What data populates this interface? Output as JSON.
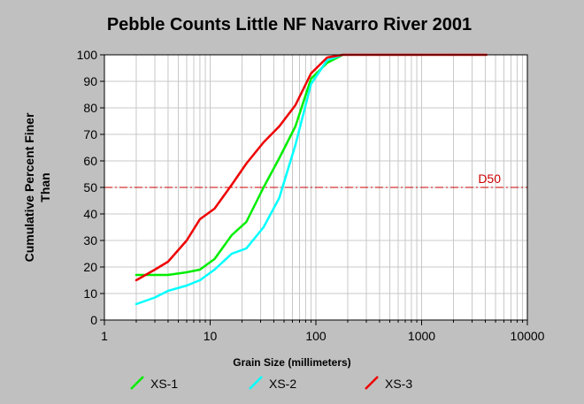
{
  "chart_data": {
    "type": "line",
    "title": "Pebble Counts Little NF Navarro River 2001",
    "xlabel": "Grain Size (millimeters)",
    "ylabel_line1": "Cumulative Percent Finer",
    "ylabel_line2": "Than",
    "x_scale": "log",
    "xlim": [
      1,
      10000
    ],
    "ylim": [
      0,
      100
    ],
    "x_ticks": [
      1,
      10,
      100,
      1000,
      10000
    ],
    "x_tick_labels": [
      "1",
      "10",
      "100",
      "1000",
      "10000"
    ],
    "y_ticks": [
      0,
      10,
      20,
      30,
      40,
      50,
      60,
      70,
      80,
      90,
      100
    ],
    "y_tick_labels": [
      "0",
      "10",
      "20",
      "30",
      "40",
      "50",
      "60",
      "70",
      "80",
      "90",
      "100"
    ],
    "grid": true,
    "legend_position": "bottom",
    "reference_line": {
      "label": "D50",
      "y": 50,
      "color": "#cc0000"
    },
    "series": [
      {
        "name": "XS-1",
        "color": "#00ee00",
        "x": [
          2,
          3,
          4,
          6,
          8,
          11,
          16,
          22,
          32,
          45,
          64,
          90,
          128,
          180
        ],
        "y": [
          17,
          17,
          17,
          18,
          19,
          23,
          32,
          37,
          50,
          61,
          73,
          91,
          97,
          100
        ]
      },
      {
        "name": "XS-2",
        "color": "#00ffff",
        "x": [
          2,
          3,
          4,
          6,
          8,
          11,
          16,
          22,
          32,
          45,
          64,
          90,
          128,
          180
        ],
        "y": [
          6,
          8.5,
          11,
          13,
          15,
          19,
          25,
          27,
          35,
          46,
          66,
          89,
          98,
          100
        ]
      },
      {
        "name": "XS-3",
        "color": "#ee0000",
        "x": [
          2,
          3,
          4,
          6,
          8,
          11,
          16,
          22,
          32,
          45,
          64,
          90,
          128,
          180,
          256,
          4096
        ],
        "y": [
          15,
          19,
          22,
          30,
          38,
          42,
          51,
          59,
          67,
          73,
          81,
          93,
          99,
          100,
          100,
          100
        ]
      }
    ]
  }
}
